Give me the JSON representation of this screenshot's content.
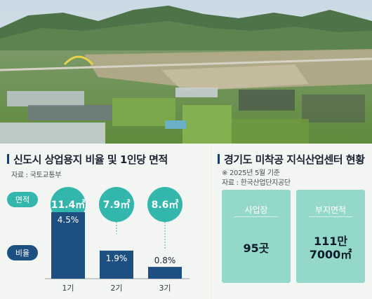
{
  "left": {
    "title": "신도시 상업용지 비율 및 1인당 면적",
    "source": "자료 : 국토교통부",
    "row_label_area": "면적",
    "row_label_ratio": "비율"
  },
  "chart_data": {
    "type": "bar",
    "title": "신도시 상업용지 비율 및 1인당 면적",
    "categories": [
      "1기",
      "2기",
      "3기"
    ],
    "series": [
      {
        "name": "비율",
        "values": [
          4.5,
          1.9,
          0.8
        ],
        "unit": "%"
      }
    ],
    "area_per_capita": [
      "11.4㎡",
      "7.9㎡",
      "8.6㎡"
    ],
    "ratio_labels": [
      "4.5%",
      "1.9%",
      "0.8%"
    ],
    "bar_color": "#1d4f80",
    "bubble_color": "#33b6ac",
    "ylim": [
      0,
      4.5
    ]
  },
  "right": {
    "title": "경기도 미착공 지식산업센터 현황",
    "note": "※ 2025년 5월 기준",
    "source": "자료 : 한국산업단지공단",
    "cards": [
      {
        "label": "사업장",
        "value_line1": "95곳",
        "value_line2": ""
      },
      {
        "label": "부지면적",
        "value_line1": "111만",
        "value_line2": "7000㎡"
      }
    ],
    "card_color": "#93d8c9"
  }
}
